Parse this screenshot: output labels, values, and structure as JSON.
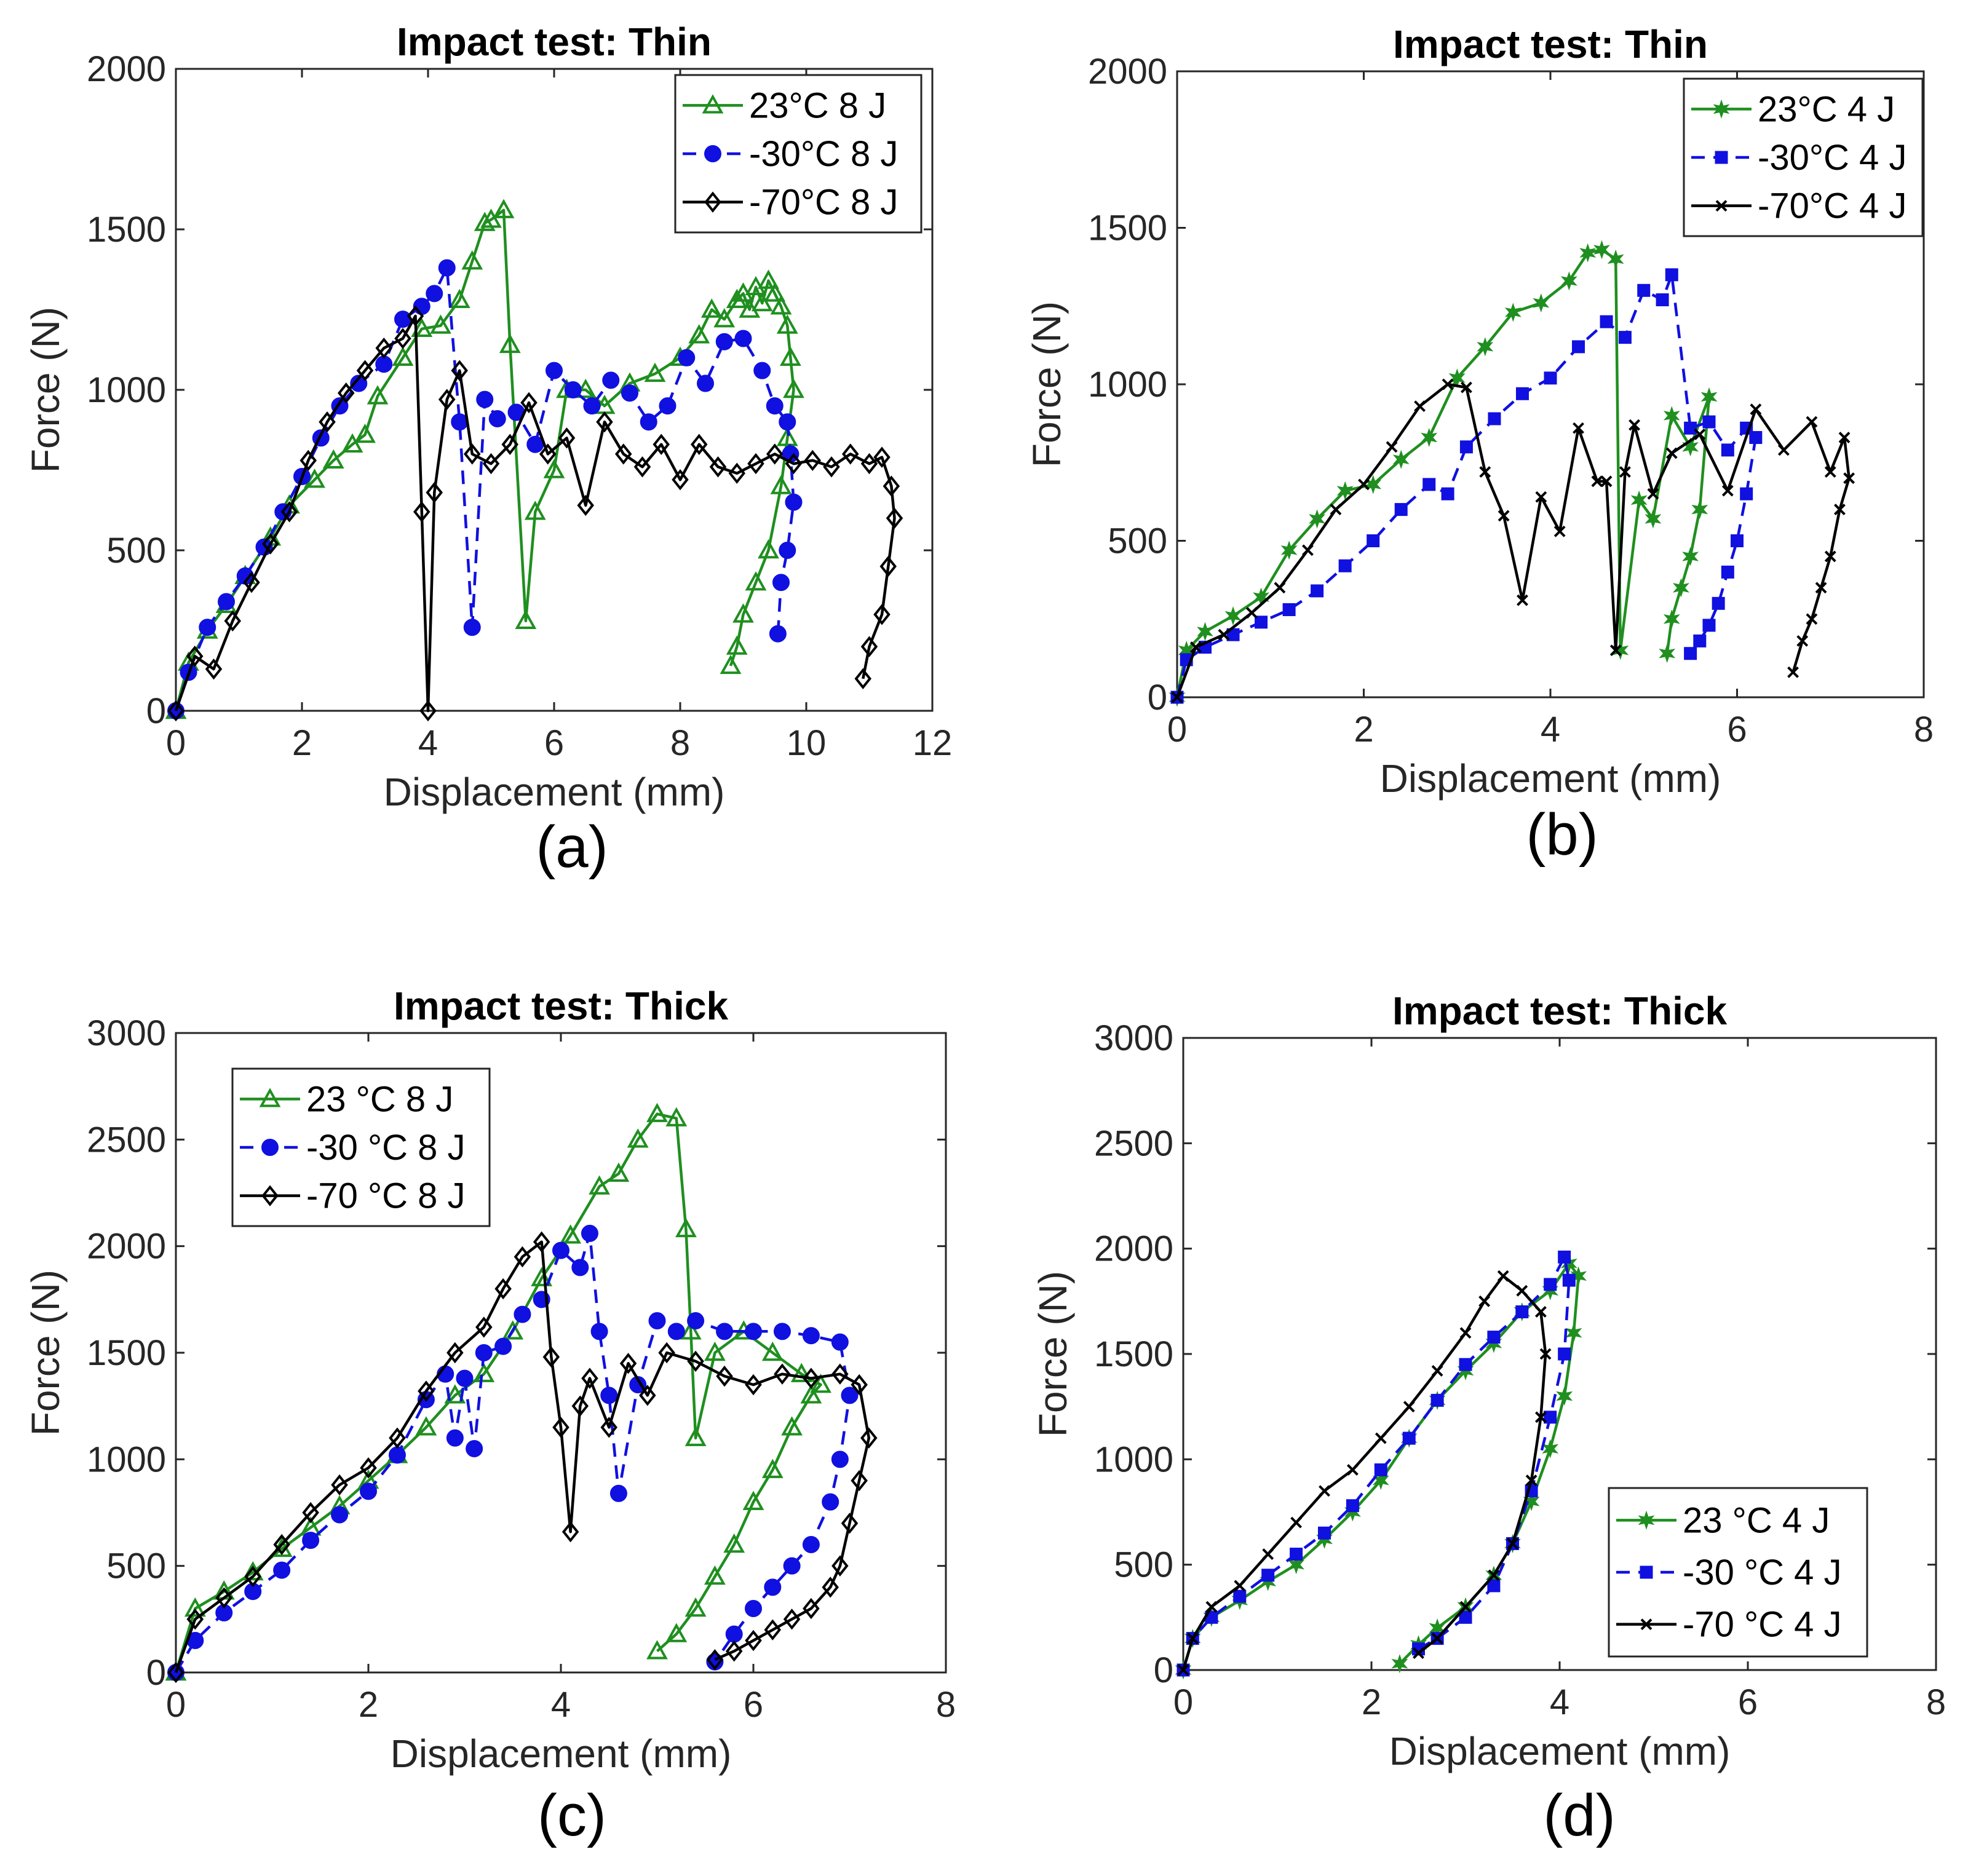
{
  "chart_data": [
    {
      "id": "a",
      "type": "line",
      "title": "Impact test: Thin",
      "xlabel": "Displacement (mm)",
      "ylabel": "Force (N)",
      "caption": "(a)",
      "xlim": [
        0,
        12
      ],
      "ylim": [
        0,
        2000
      ],
      "xticks": [
        0,
        2,
        4,
        6,
        8,
        10,
        12
      ],
      "yticks": [
        0,
        500,
        1000,
        1500,
        2000
      ],
      "legend_position": "top-right",
      "series": [
        {
          "name": "23°C 8 J",
          "color": "#1f8f1f",
          "marker": "triangle",
          "dash": "solid",
          "x": [
            0,
            0.2,
            0.5,
            0.8,
            1.1,
            1.5,
            1.8,
            2.2,
            2.5,
            2.8,
            3.0,
            3.2,
            3.6,
            3.9,
            4.2,
            4.5,
            4.7,
            4.9,
            5.0,
            5.2,
            5.3,
            5.55,
            5.7,
            6.0,
            6.2,
            6.5,
            6.8,
            7.2,
            7.6,
            8.0,
            8.3,
            8.5,
            8.7,
            8.9,
            9.0,
            9.1,
            9.2,
            9.3,
            9.4,
            9.5,
            9.6,
            9.7,
            9.75,
            9.8,
            9.7,
            9.6,
            9.4,
            9.2,
            9.0,
            8.9,
            8.8
          ],
          "y": [
            0,
            150,
            250,
            330,
            420,
            540,
            640,
            720,
            780,
            830,
            860,
            980,
            1100,
            1190,
            1200,
            1280,
            1400,
            1520,
            1530,
            1560,
            1140,
            280,
            620,
            750,
            1000,
            1000,
            950,
            1020,
            1050,
            1100,
            1170,
            1250,
            1220,
            1280,
            1300,
            1250,
            1320,
            1270,
            1340,
            1300,
            1260,
            1200,
            1100,
            1000,
            850,
            700,
            500,
            400,
            300,
            200,
            140
          ]
        },
        {
          "name": "-30°C 8 J",
          "color": "#1010e0",
          "marker": "circle",
          "dash": "dashed",
          "x": [
            0,
            0.2,
            0.5,
            0.8,
            1.1,
            1.4,
            1.7,
            2.0,
            2.3,
            2.6,
            2.9,
            3.3,
            3.6,
            3.9,
            4.1,
            4.3,
            4.5,
            4.7,
            4.9,
            5.1,
            5.4,
            5.7,
            6.0,
            6.3,
            6.6,
            6.9,
            7.2,
            7.5,
            7.8,
            8.1,
            8.4,
            8.7,
            9.0,
            9.3,
            9.5,
            9.7,
            9.75,
            9.8,
            9.7,
            9.6,
            9.55
          ],
          "y": [
            0,
            120,
            260,
            340,
            420,
            510,
            620,
            730,
            850,
            950,
            1020,
            1080,
            1220,
            1260,
            1300,
            1380,
            900,
            260,
            970,
            910,
            930,
            830,
            1060,
            1000,
            950,
            1030,
            990,
            900,
            950,
            1100,
            1020,
            1150,
            1160,
            1060,
            950,
            900,
            800,
            650,
            500,
            400,
            240
          ]
        },
        {
          "name": "-70°C 8 J",
          "color": "#000000",
          "marker": "diamond",
          "dash": "solid",
          "x": [
            0,
            0.3,
            0.6,
            0.9,
            1.2,
            1.5,
            1.8,
            2.1,
            2.4,
            2.7,
            3.0,
            3.3,
            3.6,
            3.8,
            3.9,
            4.0,
            4.1,
            4.3,
            4.5,
            4.7,
            5.0,
            5.3,
            5.6,
            5.9,
            6.2,
            6.5,
            6.8,
            7.1,
            7.4,
            7.7,
            8.0,
            8.3,
            8.6,
            8.9,
            9.2,
            9.5,
            9.8,
            10.1,
            10.4,
            10.7,
            11.0,
            11.2,
            11.35,
            11.4,
            11.3,
            11.2,
            11.0,
            10.9
          ],
          "y": [
            0,
            170,
            130,
            280,
            400,
            520,
            620,
            780,
            900,
            990,
            1060,
            1130,
            1160,
            1230,
            620,
            0,
            680,
            970,
            1060,
            800,
            770,
            830,
            960,
            800,
            850,
            640,
            900,
            800,
            760,
            830,
            720,
            830,
            760,
            740,
            770,
            800,
            770,
            780,
            760,
            800,
            770,
            790,
            700,
            600,
            450,
            300,
            200,
            100
          ]
        }
      ]
    },
    {
      "id": "b",
      "type": "line",
      "title": "Impact test: Thin",
      "xlabel": "Displacement (mm)",
      "ylabel": "Force (N)",
      "caption": "(b)",
      "xlim": [
        0,
        8
      ],
      "ylim": [
        0,
        2000
      ],
      "xticks": [
        0,
        2,
        4,
        6,
        8
      ],
      "yticks": [
        0,
        500,
        1000,
        1500,
        2000
      ],
      "legend_position": "top-right",
      "series": [
        {
          "name": "23°C 4 J",
          "color": "#1f8f1f",
          "marker": "star",
          "dash": "solid",
          "x": [
            0,
            0.1,
            0.3,
            0.6,
            0.9,
            1.2,
            1.5,
            1.8,
            2.1,
            2.4,
            2.7,
            3.0,
            3.3,
            3.6,
            3.9,
            4.2,
            4.4,
            4.55,
            4.7,
            4.75,
            4.95,
            5.1,
            5.3,
            5.5,
            5.7,
            5.6,
            5.5,
            5.4,
            5.3,
            5.25
          ],
          "y": [
            0,
            150,
            210,
            260,
            320,
            470,
            570,
            660,
            680,
            760,
            830,
            1020,
            1120,
            1230,
            1260,
            1330,
            1420,
            1430,
            1400,
            150,
            630,
            570,
            900,
            800,
            960,
            600,
            450,
            350,
            250,
            140
          ]
        },
        {
          "name": "-30°C 4 J",
          "color": "#1010e0",
          "marker": "square",
          "dash": "dashed",
          "x": [
            0,
            0.1,
            0.3,
            0.6,
            0.9,
            1.2,
            1.5,
            1.8,
            2.1,
            2.4,
            2.7,
            2.9,
            3.1,
            3.4,
            3.7,
            4.0,
            4.3,
            4.6,
            4.8,
            5.0,
            5.2,
            5.3,
            5.5,
            5.7,
            5.9,
            6.1,
            6.2,
            6.1,
            6.0,
            5.9,
            5.8,
            5.7,
            5.6,
            5.5
          ],
          "y": [
            0,
            120,
            160,
            200,
            240,
            280,
            340,
            420,
            500,
            600,
            680,
            650,
            800,
            890,
            970,
            1020,
            1120,
            1200,
            1150,
            1300,
            1270,
            1350,
            860,
            880,
            790,
            860,
            830,
            650,
            500,
            400,
            300,
            230,
            180,
            140
          ]
        },
        {
          "name": "-70°C 4 J",
          "color": "#000000",
          "marker": "x",
          "dash": "solid",
          "x": [
            0,
            0.2,
            0.5,
            0.8,
            1.1,
            1.4,
            1.7,
            2.0,
            2.3,
            2.6,
            2.9,
            3.1,
            3.3,
            3.5,
            3.7,
            3.9,
            4.1,
            4.3,
            4.5,
            4.6,
            4.7,
            4.8,
            4.9,
            5.1,
            5.3,
            5.6,
            5.9,
            6.2,
            6.5,
            6.8,
            7.0,
            7.15,
            7.2,
            7.1,
            7.0,
            6.9,
            6.8,
            6.7,
            6.6
          ],
          "y": [
            0,
            160,
            200,
            270,
            350,
            470,
            600,
            680,
            800,
            930,
            1000,
            990,
            720,
            580,
            310,
            640,
            530,
            860,
            690,
            690,
            150,
            720,
            870,
            650,
            780,
            840,
            660,
            920,
            790,
            880,
            720,
            830,
            700,
            600,
            450,
            350,
            250,
            180,
            80
          ]
        }
      ]
    },
    {
      "id": "c",
      "type": "line",
      "title": "Impact test: Thick",
      "xlabel": "Displacement (mm)",
      "ylabel": "Force (N)",
      "caption": "(c)",
      "xlim": [
        0,
        8
      ],
      "ylim": [
        0,
        3000
      ],
      "xticks": [
        0,
        2,
        4,
        6,
        8
      ],
      "yticks": [
        0,
        500,
        1000,
        1500,
        2000,
        2500,
        3000
      ],
      "legend_position": "top-left",
      "series": [
        {
          "name": "23 °C 8 J",
          "color": "#1f8f1f",
          "marker": "triangle",
          "dash": "solid",
          "x": [
            0,
            0.2,
            0.5,
            0.8,
            1.1,
            1.4,
            1.7,
            2.0,
            2.3,
            2.6,
            2.9,
            3.2,
            3.5,
            3.8,
            4.1,
            4.4,
            4.6,
            4.8,
            5.0,
            5.2,
            5.3,
            5.35,
            5.4,
            5.6,
            5.9,
            6.2,
            6.5,
            6.7,
            6.6,
            6.4,
            6.2,
            6.0,
            5.8,
            5.6,
            5.4,
            5.2,
            5.0
          ],
          "y": [
            0,
            300,
            380,
            470,
            580,
            680,
            780,
            900,
            1020,
            1150,
            1300,
            1400,
            1600,
            1850,
            2050,
            2280,
            2340,
            2500,
            2620,
            2600,
            2080,
            1600,
            1100,
            1500,
            1600,
            1500,
            1400,
            1350,
            1300,
            1150,
            950,
            800,
            600,
            450,
            300,
            180,
            100
          ]
        },
        {
          "name": "-30 °C 8 J",
          "color": "#1010e0",
          "marker": "circle",
          "dash": "dashed",
          "x": [
            0,
            0.2,
            0.5,
            0.8,
            1.1,
            1.4,
            1.7,
            2.0,
            2.3,
            2.6,
            2.8,
            2.9,
            3.0,
            3.1,
            3.2,
            3.4,
            3.6,
            3.8,
            4.0,
            4.2,
            4.3,
            4.4,
            4.5,
            4.6,
            4.8,
            5.0,
            5.2,
            5.4,
            5.7,
            6.0,
            6.3,
            6.6,
            6.9,
            7.0,
            6.9,
            6.8,
            6.6,
            6.4,
            6.2,
            6.0,
            5.8,
            5.6
          ],
          "y": [
            0,
            150,
            280,
            380,
            480,
            620,
            740,
            850,
            1020,
            1280,
            1400,
            1100,
            1380,
            1050,
            1500,
            1530,
            1680,
            1750,
            1980,
            1900,
            2060,
            1600,
            1300,
            840,
            1350,
            1650,
            1600,
            1650,
            1600,
            1600,
            1600,
            1580,
            1550,
            1300,
            1000,
            800,
            600,
            500,
            400,
            300,
            180,
            50
          ]
        },
        {
          "name": "-70 °C 8 J",
          "color": "#000000",
          "marker": "diamond",
          "dash": "solid",
          "x": [
            0,
            0.2,
            0.5,
            0.8,
            1.1,
            1.4,
            1.7,
            2.0,
            2.3,
            2.6,
            2.9,
            3.2,
            3.4,
            3.6,
            3.8,
            3.9,
            4.0,
            4.1,
            4.2,
            4.3,
            4.5,
            4.7,
            4.9,
            5.1,
            5.4,
            5.7,
            6.0,
            6.3,
            6.6,
            6.9,
            7.1,
            7.2,
            7.1,
            7.0,
            6.9,
            6.8,
            6.6,
            6.4,
            6.2,
            6.0,
            5.8,
            5.6
          ],
          "y": [
            0,
            250,
            350,
            450,
            600,
            750,
            880,
            960,
            1100,
            1320,
            1500,
            1620,
            1800,
            1950,
            2020,
            1480,
            1150,
            660,
            1250,
            1380,
            1150,
            1450,
            1300,
            1500,
            1460,
            1390,
            1350,
            1400,
            1380,
            1400,
            1350,
            1100,
            900,
            700,
            500,
            400,
            300,
            250,
            200,
            150,
            100,
            60
          ]
        }
      ]
    },
    {
      "id": "d",
      "type": "line",
      "title": "Impact test: Thick",
      "xlabel": "Displacement (mm)",
      "ylabel": "Force (N)",
      "caption": "(d)",
      "xlim": [
        0,
        8
      ],
      "ylim": [
        0,
        3000
      ],
      "xticks": [
        0,
        2,
        4,
        6,
        8
      ],
      "yticks": [
        0,
        500,
        1000,
        1500,
        2000,
        2500,
        3000
      ],
      "legend_position": "bottom-right",
      "series": [
        {
          "name": "23 °C 4 J",
          "color": "#1f8f1f",
          "marker": "star",
          "dash": "solid",
          "x": [
            0,
            0.1,
            0.3,
            0.6,
            0.9,
            1.2,
            1.5,
            1.8,
            2.1,
            2.4,
            2.7,
            3.0,
            3.3,
            3.6,
            3.9,
            4.1,
            4.2,
            4.15,
            4.05,
            3.9,
            3.7,
            3.5,
            3.3,
            3.0,
            2.7,
            2.5,
            2.3
          ],
          "y": [
            0,
            150,
            250,
            330,
            420,
            500,
            620,
            750,
            900,
            1100,
            1280,
            1420,
            1550,
            1700,
            1800,
            1930,
            1870,
            1600,
            1300,
            1050,
            800,
            600,
            450,
            300,
            200,
            120,
            30
          ]
        },
        {
          "name": "-30 °C 4 J",
          "color": "#1010e0",
          "marker": "square",
          "dash": "dashed",
          "x": [
            0,
            0.1,
            0.3,
            0.6,
            0.9,
            1.2,
            1.5,
            1.8,
            2.1,
            2.4,
            2.7,
            3.0,
            3.3,
            3.6,
            3.9,
            4.05,
            4.1,
            4.05,
            3.9,
            3.7,
            3.5,
            3.3,
            3.0,
            2.7,
            2.5
          ],
          "y": [
            0,
            150,
            250,
            350,
            450,
            550,
            650,
            780,
            950,
            1100,
            1280,
            1450,
            1580,
            1700,
            1830,
            1960,
            1850,
            1500,
            1200,
            850,
            600,
            400,
            250,
            150,
            100
          ]
        },
        {
          "name": "-70 °C 4 J",
          "color": "#000000",
          "marker": "x",
          "dash": "solid",
          "x": [
            0,
            0.1,
            0.3,
            0.6,
            0.9,
            1.2,
            1.5,
            1.8,
            2.1,
            2.4,
            2.7,
            3.0,
            3.2,
            3.4,
            3.6,
            3.8,
            3.85,
            3.8,
            3.7,
            3.5,
            3.3,
            3.0,
            2.7,
            2.5
          ],
          "y": [
            0,
            150,
            300,
            400,
            550,
            700,
            850,
            950,
            1100,
            1250,
            1420,
            1600,
            1750,
            1870,
            1800,
            1700,
            1500,
            1200,
            900,
            600,
            450,
            300,
            150,
            80
          ]
        }
      ]
    }
  ]
}
